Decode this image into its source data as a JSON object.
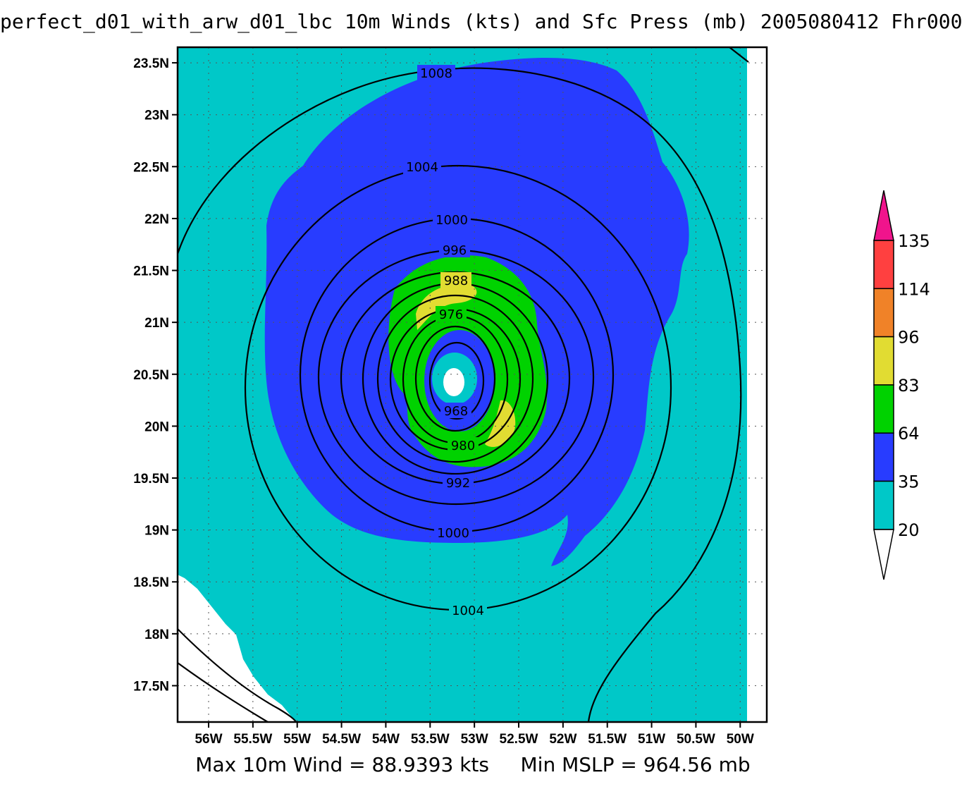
{
  "title": "perfect_d01_with_arw_d01_lbc 10m Winds (kts) and Sfc Press (mb) 2005080412 Fhr000",
  "footer": {
    "max_wind": "Max 10m Wind = 88.9393 kts",
    "min_mslp": "Min MSLP = 964.56 mb"
  },
  "axes": {
    "lat_labels": [
      "23.5N",
      "23N",
      "22.5N",
      "22N",
      "21.5N",
      "21N",
      "20.5N",
      "20N",
      "19.5N",
      "19N",
      "18.5N",
      "18N",
      "17.5N"
    ],
    "lat_values": [
      23.5,
      23,
      22.5,
      22,
      21.5,
      21,
      20.5,
      20,
      19.5,
      19,
      18.5,
      18,
      17.5
    ],
    "lon_labels": [
      "56W",
      "55.5W",
      "55W",
      "54.5W",
      "54W",
      "53.5W",
      "53W",
      "52.5W",
      "52W",
      "51.5W",
      "51W",
      "50.5W",
      "50W"
    ],
    "lon_values": [
      -56,
      -55.5,
      -55,
      -54.5,
      -54,
      -53.5,
      -53,
      -52.5,
      -52,
      -51.5,
      -51,
      -50.5,
      -50
    ],
    "lat_range": [
      17.15,
      23.65
    ],
    "lon_range": [
      -56.35,
      -49.7
    ]
  },
  "storm_center": {
    "lon": -53.2,
    "lat": 20.42
  },
  "isobars": {
    "labels": [
      "1008",
      "1004",
      "1000",
      "996",
      "988",
      "976",
      "968",
      "980",
      "992",
      "1000",
      "1004"
    ]
  },
  "colorbar": {
    "levels": [
      "135",
      "114",
      "96",
      "83",
      "64",
      "35",
      "20"
    ],
    "colors": [
      "#f0148c",
      "#ff4040",
      "#f08228",
      "#e1dc32",
      "#00d200",
      "#283cff",
      "#00c8c8",
      "#ffffff"
    ]
  }
}
